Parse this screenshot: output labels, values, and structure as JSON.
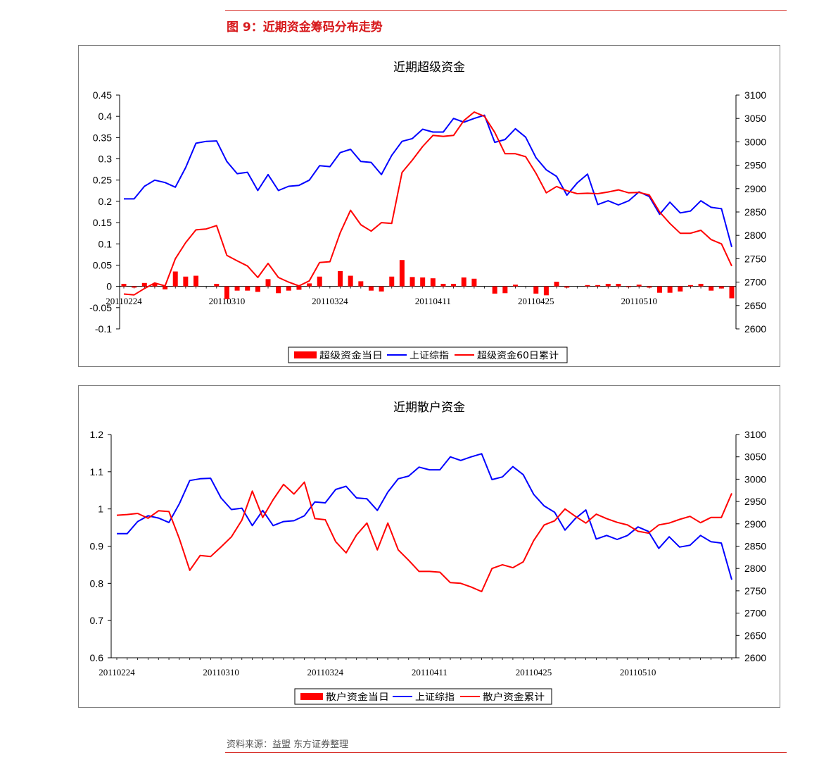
{
  "figure": {
    "title": "图 9：近期资金筹码分布走势",
    "source": "资料来源：益盟   东方证券整理"
  },
  "chart_data": [
    {
      "type": "bar+line",
      "title": "近期超级资金",
      "left_axis": {
        "min": -0.1,
        "max": 0.45,
        "ticks": [
          -0.1,
          -0.05,
          0,
          0.05,
          0.1,
          0.15,
          0.2,
          0.25,
          0.3,
          0.35,
          0.4,
          0.45
        ]
      },
      "right_axis": {
        "min": 2600,
        "max": 3100,
        "ticks": [
          2600,
          2650,
          2700,
          2750,
          2800,
          2850,
          2900,
          2950,
          3000,
          3050,
          3100
        ]
      },
      "date_labels": [
        {
          "label": "20110224",
          "index": 0
        },
        {
          "label": "20110310",
          "index": 10
        },
        {
          "label": "20110324",
          "index": 20
        },
        {
          "label": "20110411",
          "index": 30
        },
        {
          "label": "20110425",
          "index": 40
        },
        {
          "label": "20110510",
          "index": 50
        }
      ],
      "legend": [
        "超级资金当日",
        "上证综指",
        "超级资金60日累计"
      ],
      "series": [
        {
          "name": "超级资金当日",
          "kind": "bar",
          "axis": "left",
          "color": "#ff0000",
          "values": [
            0.006,
            -0.003,
            0.008,
            0.006,
            -0.007,
            0.035,
            0.023,
            0.025,
            null,
            0.006,
            -0.03,
            -0.01,
            -0.01,
            -0.013,
            0.017,
            -0.016,
            -0.01,
            -0.008,
            0.007,
            0.023,
            null,
            0.036,
            0.025,
            0.012,
            -0.01,
            -0.012,
            0.023,
            0.062,
            0.022,
            0.021,
            0.019,
            0.006,
            0.006,
            0.021,
            0.018,
            null,
            -0.017,
            -0.016,
            0.004,
            null,
            -0.017,
            -0.021,
            0.011,
            -0.003,
            null,
            0.003,
            0.003,
            0.006,
            0.006,
            -0.002,
            0.004,
            -0.003,
            -0.015,
            -0.015,
            -0.012,
            0.003,
            0.006,
            -0.01,
            -0.005,
            -0.028
          ]
        },
        {
          "name": "上证综指",
          "kind": "line",
          "axis": "right",
          "color": "#0000ff",
          "values": [
            2878,
            2878,
            2905,
            2918,
            2913,
            2903,
            2945,
            2997,
            3001,
            3002,
            2958,
            2932,
            2935,
            2896,
            2930,
            2896,
            2905,
            2907,
            2918,
            2949,
            2947,
            2977,
            2984,
            2958,
            2956,
            2930,
            2971,
            3001,
            3007,
            3027,
            3021,
            3021,
            3050,
            3042,
            3050,
            3057,
            2999,
            3005,
            3028,
            3010,
            2966,
            2940,
            2926,
            2886,
            2912,
            2931,
            2866,
            2874,
            2865,
            2874,
            2893,
            2883,
            2845,
            2871,
            2848,
            2852,
            2874,
            2860,
            2857,
            2775
          ]
        },
        {
          "name": "超级资金60日累计",
          "kind": "line",
          "axis": "left",
          "color": "#ff0000",
          "values": [
            -0.018,
            -0.02,
            -0.005,
            0.008,
            0.001,
            0.065,
            0.103,
            0.133,
            0.135,
            0.143,
            0.073,
            0.06,
            0.048,
            0.021,
            0.054,
            0.021,
            0.01,
            0.001,
            0.013,
            0.056,
            0.058,
            0.126,
            0.179,
            0.145,
            0.13,
            0.15,
            0.148,
            0.268,
            0.297,
            0.329,
            0.355,
            0.353,
            0.355,
            0.39,
            0.41,
            0.4,
            0.362,
            0.312,
            0.312,
            0.305,
            0.266,
            0.22,
            0.235,
            0.225,
            0.218,
            0.219,
            0.218,
            0.222,
            0.227,
            0.22,
            0.221,
            0.215,
            0.175,
            0.148,
            0.125,
            0.125,
            0.132,
            0.11,
            0.1,
            0.048
          ]
        }
      ]
    },
    {
      "type": "bar+line",
      "title": "近期散户资金",
      "left_axis": {
        "min": 0.6,
        "max": 1.2,
        "ticks": [
          0.6,
          0.7,
          0.8,
          0.9,
          1,
          1.1,
          1.2
        ]
      },
      "right_axis": {
        "min": 2600,
        "max": 3100,
        "ticks": [
          2600,
          2650,
          2700,
          2750,
          2800,
          2850,
          2900,
          2950,
          3000,
          3050,
          3100
        ]
      },
      "date_labels": [
        {
          "label": "20110224",
          "index": 0
        },
        {
          "label": "20110310",
          "index": 10
        },
        {
          "label": "20110324",
          "index": 20
        },
        {
          "label": "20110411",
          "index": 30
        },
        {
          "label": "20110425",
          "index": 40
        },
        {
          "label": "20110510",
          "index": 50
        }
      ],
      "legend": [
        "散户资金当日",
        "上证综指",
        "散户资金累计"
      ],
      "series": [
        {
          "name": "散户资金当日",
          "kind": "bar",
          "axis": "left",
          "color": "#ff0000",
          "values": []
        },
        {
          "name": "上证综指",
          "kind": "line",
          "axis": "right",
          "color": "#0000ff",
          "values": [
            2878,
            2878,
            2905,
            2918,
            2913,
            2903,
            2945,
            2997,
            3001,
            3002,
            2958,
            2932,
            2935,
            2896,
            2930,
            2896,
            2905,
            2907,
            2918,
            2949,
            2947,
            2977,
            2984,
            2958,
            2956,
            2930,
            2971,
            3001,
            3007,
            3027,
            3021,
            3021,
            3050,
            3042,
            3050,
            3057,
            2999,
            3005,
            3028,
            3010,
            2966,
            2940,
            2926,
            2886,
            2912,
            2931,
            2866,
            2874,
            2865,
            2874,
            2893,
            2883,
            2845,
            2871,
            2848,
            2852,
            2874,
            2860,
            2857,
            2775
          ]
        },
        {
          "name": "散户资金累计",
          "kind": "line",
          "axis": "left",
          "color": "#ff0000",
          "values": [
            0.983,
            0.985,
            0.988,
            0.975,
            0.995,
            0.993,
            0.92,
            0.835,
            0.875,
            0.872,
            0.898,
            0.925,
            0.97,
            1.048,
            0.977,
            1.025,
            1.066,
            1.04,
            1.072,
            0.974,
            0.971,
            0.912,
            0.882,
            0.93,
            0.962,
            0.89,
            0.962,
            0.89,
            0.862,
            0.832,
            0.832,
            0.83,
            0.802,
            0.8,
            0.79,
            0.778,
            0.84,
            0.85,
            0.842,
            0.858,
            0.915,
            0.957,
            0.968,
            1.0,
            0.98,
            0.962,
            0.986,
            0.974,
            0.964,
            0.957,
            0.94,
            0.935,
            0.957,
            0.962,
            0.972,
            0.98,
            0.963,
            0.977,
            0.977,
            1.042
          ]
        }
      ]
    }
  ]
}
